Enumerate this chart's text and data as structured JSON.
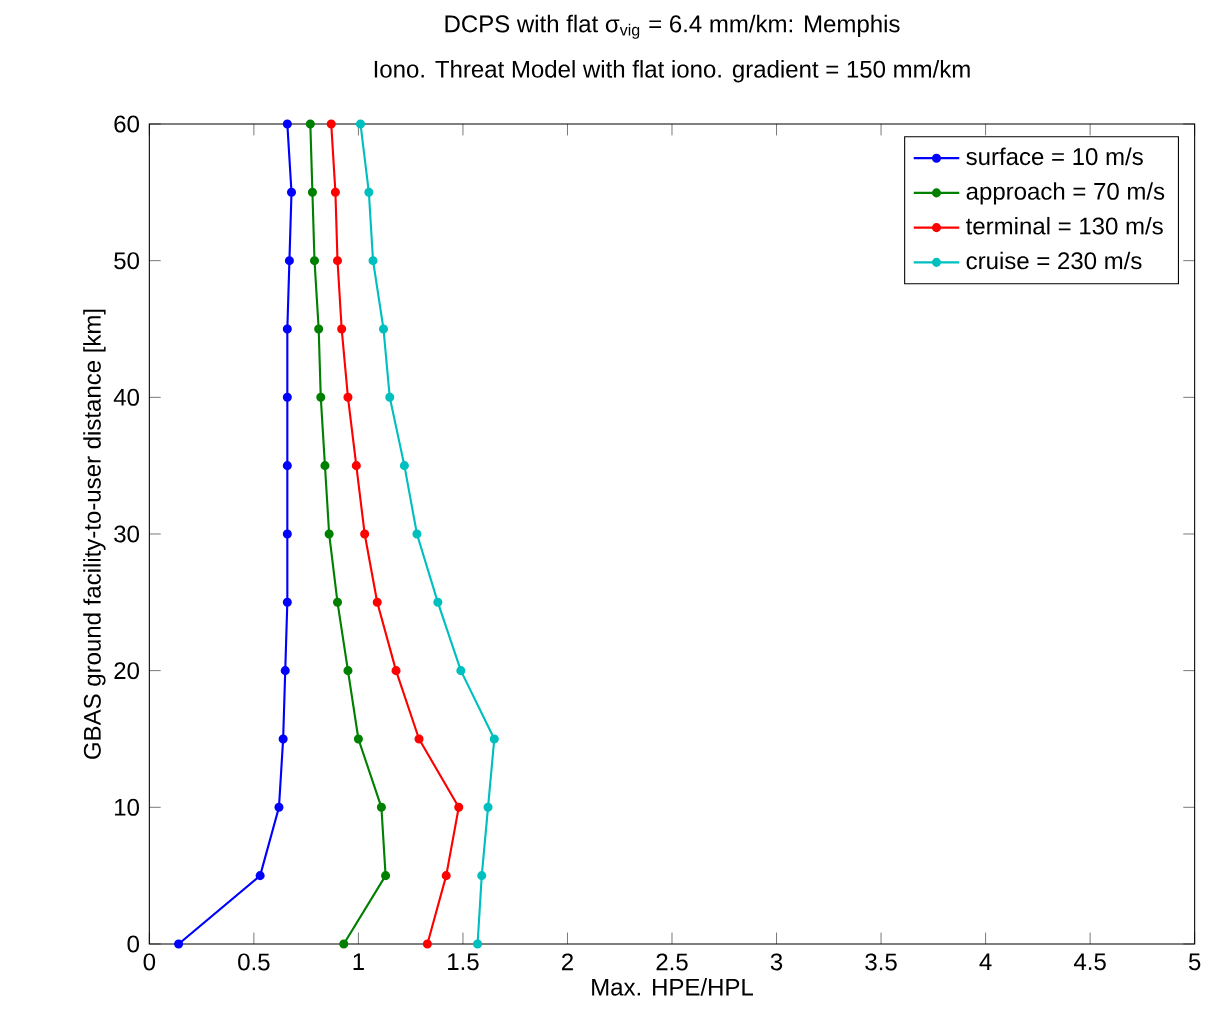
{
  "chart_data": {
    "type": "line",
    "title": "DCPS with flat σ$_{vig}$ = 6.4 mm/km: Memphis",
    "subtitle": "Iono. Threat Model with flat iono. gradient = 150 mm/km",
    "xlabel": "Max. HPE/HPL",
    "ylabel": "GBAS ground facility-to-user distance [km]",
    "xlim": [
      0,
      5
    ],
    "ylim": [
      0,
      60
    ],
    "xticks": [
      0,
      0.5,
      1,
      1.5,
      2,
      2.5,
      3,
      3.5,
      4,
      4.5,
      5
    ],
    "yticks": [
      0,
      10,
      20,
      30,
      40,
      50,
      60
    ],
    "grid": false,
    "legend": "top right",
    "marker": "circle",
    "line_style": "solid",
    "series": [
      {
        "name": "surface = 10 m/s",
        "color": "#0000ff",
        "x": [
          0.14,
          0.53,
          0.62,
          0.64,
          0.65,
          0.66,
          0.66,
          0.66,
          0.66,
          0.66,
          0.67,
          0.68,
          0.66
        ],
        "values": [
          0,
          5,
          10,
          15,
          20,
          25,
          30,
          35,
          40,
          45,
          50,
          55,
          60
        ]
      },
      {
        "name": "approach = 70 m/s",
        "color": "#008000",
        "x": [
          0.93,
          1.13,
          1.11,
          1.0,
          0.95,
          0.9,
          0.86,
          0.84,
          0.82,
          0.81,
          0.79,
          0.78,
          0.77
        ],
        "values": [
          0,
          5,
          10,
          15,
          20,
          25,
          30,
          35,
          40,
          45,
          50,
          55,
          60
        ]
      },
      {
        "name": "terminal = 130 m/s",
        "color": "#ff0000",
        "x": [
          1.33,
          1.42,
          1.48,
          1.29,
          1.18,
          1.09,
          1.03,
          0.99,
          0.95,
          0.92,
          0.9,
          0.89,
          0.87
        ],
        "values": [
          0,
          5,
          10,
          15,
          20,
          25,
          30,
          35,
          40,
          45,
          50,
          55,
          60
        ]
      },
      {
        "name": "cruise = 230 m/s",
        "color": "#00bfbf",
        "x": [
          1.57,
          1.59,
          1.62,
          1.65,
          1.49,
          1.38,
          1.28,
          1.22,
          1.15,
          1.12,
          1.07,
          1.05,
          1.01
        ],
        "values": [
          0,
          5,
          10,
          15,
          20,
          25,
          30,
          35,
          40,
          45,
          50,
          55,
          60
        ]
      }
    ]
  }
}
